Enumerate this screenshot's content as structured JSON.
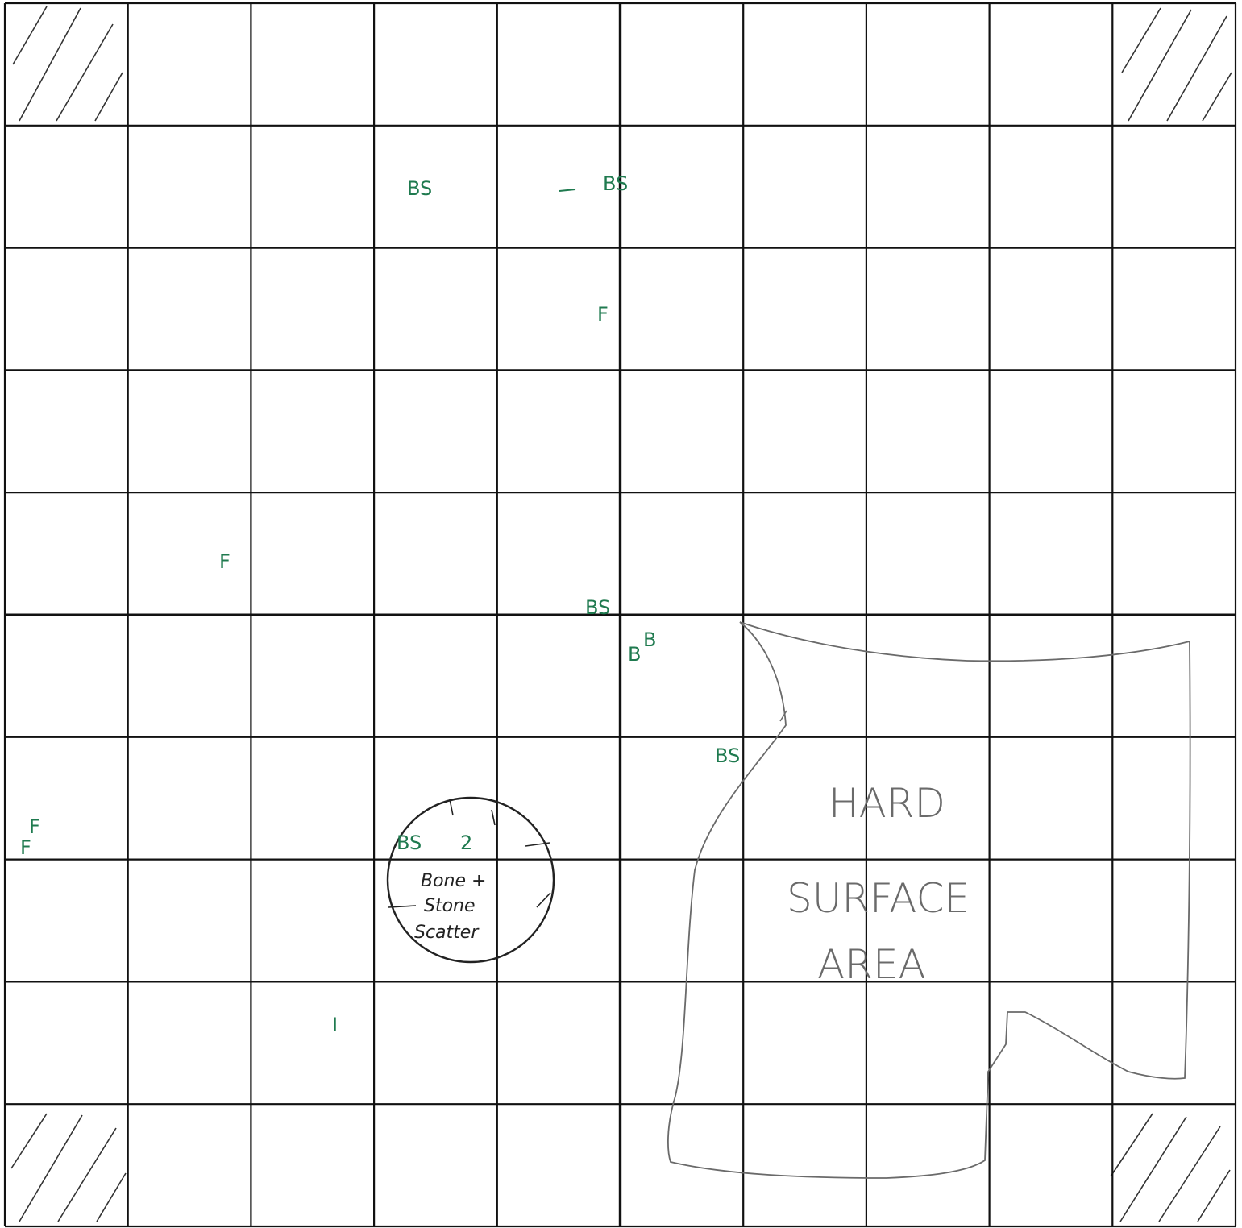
{
  "grid": {
    "columns": 10,
    "rows": 10,
    "line_color": "#111111",
    "paper_color": "#ffffff",
    "hatched_corner_cells": [
      "top-left",
      "top-right",
      "bottom-left",
      "bottom-right"
    ]
  },
  "marker_color": "#1f7a4f",
  "pencil_color": "#6a6a6a",
  "ink_color": "#222222",
  "green_labels": {
    "bs_top_left": "BS",
    "bs_top_right": "BS",
    "f_upper_center": "F",
    "f_left_mid": "F",
    "bs_center": "BS",
    "b_small": "B",
    "b_big": "B",
    "bs_near_area": "BS",
    "f_left_edge_1": "F",
    "f_left_edge_2": "F",
    "bs_circle": "BS",
    "num_circle": "2",
    "i_lower": "I"
  },
  "circle_feature": {
    "line1": "Bone +",
    "line2": "Stone",
    "line3": "Scatter"
  },
  "hard_surface": {
    "line1": "HARD",
    "line2": "SURFACE",
    "line3": "AREA"
  }
}
